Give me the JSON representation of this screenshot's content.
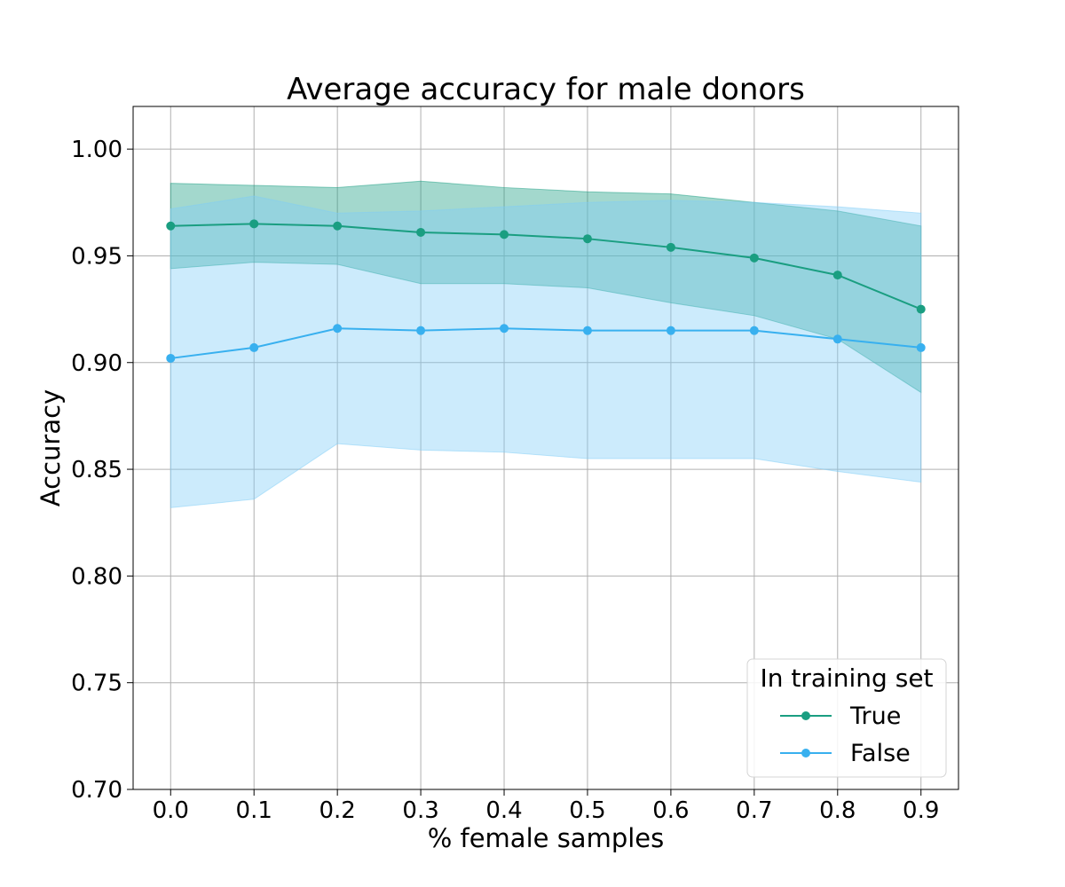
{
  "chart_data": {
    "type": "line",
    "title": "Average accuracy for male donors",
    "xlabel": "% female samples",
    "ylabel": "Accuracy",
    "x": [
      0.0,
      0.1,
      0.2,
      0.3,
      0.4,
      0.5,
      0.6,
      0.7,
      0.8,
      0.9
    ],
    "x_tick_labels": [
      "0.0",
      "0.1",
      "0.2",
      "0.3",
      "0.4",
      "0.5",
      "0.6",
      "0.7",
      "0.8",
      "0.9"
    ],
    "xlim": [
      -0.045,
      0.945
    ],
    "ylim": [
      0.7,
      1.02
    ],
    "y_ticks": [
      0.7,
      0.75,
      0.8,
      0.85,
      0.9,
      0.95,
      1.0
    ],
    "y_tick_labels": [
      "0.70",
      "0.75",
      "0.80",
      "0.85",
      "0.90",
      "0.95",
      "1.00"
    ],
    "grid": true,
    "legend": {
      "title": "In training set",
      "position": "lower-right"
    },
    "series": [
      {
        "name": "True",
        "color": "#1a9e81",
        "band_color": "#1a9e81",
        "values": [
          0.964,
          0.965,
          0.964,
          0.961,
          0.96,
          0.958,
          0.954,
          0.949,
          0.941,
          0.925
        ],
        "upper": [
          0.984,
          0.983,
          0.982,
          0.985,
          0.982,
          0.98,
          0.979,
          0.975,
          0.971,
          0.964
        ],
        "lower": [
          0.944,
          0.947,
          0.946,
          0.937,
          0.937,
          0.935,
          0.928,
          0.922,
          0.911,
          0.886
        ]
      },
      {
        "name": "False",
        "color": "#38b0ef",
        "band_color": "#7fcdf7",
        "values": [
          0.902,
          0.907,
          0.916,
          0.915,
          0.916,
          0.915,
          0.915,
          0.915,
          0.911,
          0.907
        ],
        "upper": [
          0.972,
          0.978,
          0.97,
          0.971,
          0.973,
          0.975,
          0.976,
          0.975,
          0.973,
          0.97
        ],
        "lower": [
          0.832,
          0.836,
          0.862,
          0.859,
          0.858,
          0.855,
          0.855,
          0.855,
          0.849,
          0.844
        ]
      }
    ]
  }
}
